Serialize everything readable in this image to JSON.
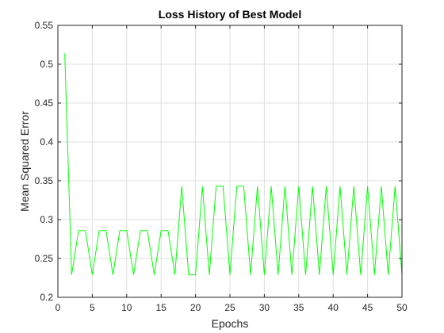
{
  "chart_data": {
    "type": "line",
    "title": "Loss History of Best Model",
    "xlabel": "Epochs",
    "ylabel": "Mean Squared Error",
    "xlim": [
      0,
      50
    ],
    "ylim": [
      0.2,
      0.55
    ],
    "xticks": [
      0,
      5,
      10,
      15,
      20,
      25,
      30,
      35,
      40,
      45,
      50
    ],
    "xtick_labels": [
      "0",
      "5",
      "10",
      "15",
      "20",
      "25",
      "30",
      "35",
      "40",
      "45",
      "50"
    ],
    "yticks": [
      0.2,
      0.25,
      0.3,
      0.35,
      0.4,
      0.45,
      0.5,
      0.55
    ],
    "ytick_labels": [
      "0.2",
      "0.25",
      "0.3",
      "0.35",
      "0.4",
      "0.45",
      "0.5",
      "0.55"
    ],
    "grid": true,
    "series": [
      {
        "color": "#00ff00",
        "x": [
          1,
          2,
          3,
          4,
          5,
          6,
          7,
          8,
          9,
          10,
          11,
          12,
          13,
          14,
          15,
          16,
          17,
          18,
          19,
          20,
          21,
          22,
          23,
          24,
          25,
          26,
          27,
          28,
          29,
          30,
          31,
          32,
          33,
          34,
          35,
          36,
          37,
          38,
          39,
          40,
          41,
          42,
          43,
          44,
          45,
          46,
          47,
          48,
          49,
          50
        ],
        "y": [
          0.514,
          0.229,
          0.286,
          0.286,
          0.229,
          0.286,
          0.286,
          0.229,
          0.286,
          0.286,
          0.229,
          0.286,
          0.286,
          0.229,
          0.286,
          0.286,
          0.229,
          0.343,
          0.229,
          0.229,
          0.343,
          0.229,
          0.343,
          0.343,
          0.229,
          0.343,
          0.343,
          0.229,
          0.343,
          0.229,
          0.343,
          0.229,
          0.343,
          0.229,
          0.343,
          0.229,
          0.343,
          0.229,
          0.343,
          0.229,
          0.343,
          0.229,
          0.343,
          0.229,
          0.343,
          0.229,
          0.343,
          0.229,
          0.343,
          0.229
        ]
      }
    ]
  }
}
